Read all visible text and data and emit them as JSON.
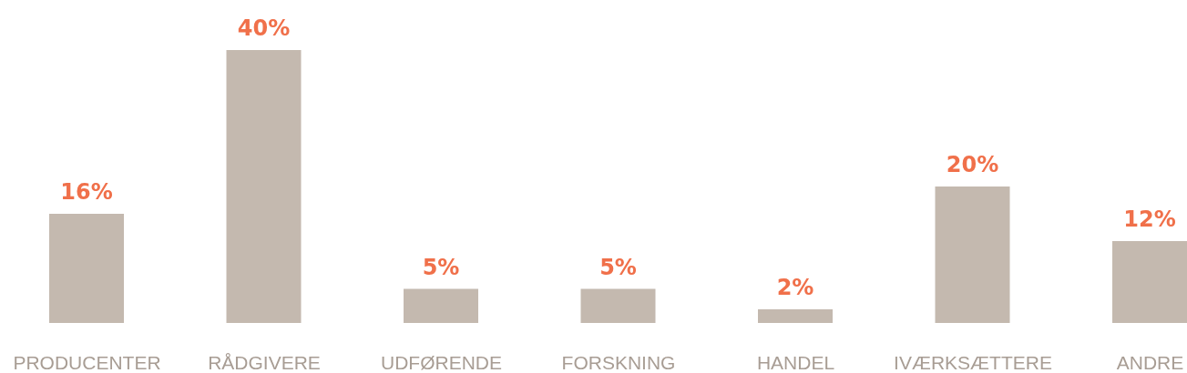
{
  "chart_data": {
    "type": "bar",
    "categories": [
      "PRODUCENTER",
      "RÅDGIVERE",
      "UDFØRENDE",
      "FORSKNING",
      "HANDEL",
      "IVÆRKSÆTTERE",
      "ANDRE"
    ],
    "values": [
      16,
      40,
      5,
      5,
      2,
      20,
      12
    ],
    "value_labels": [
      "16%",
      "40%",
      "5%",
      "5%",
      "2%",
      "20%",
      "12%"
    ],
    "color": "#c4b9af"
  }
}
